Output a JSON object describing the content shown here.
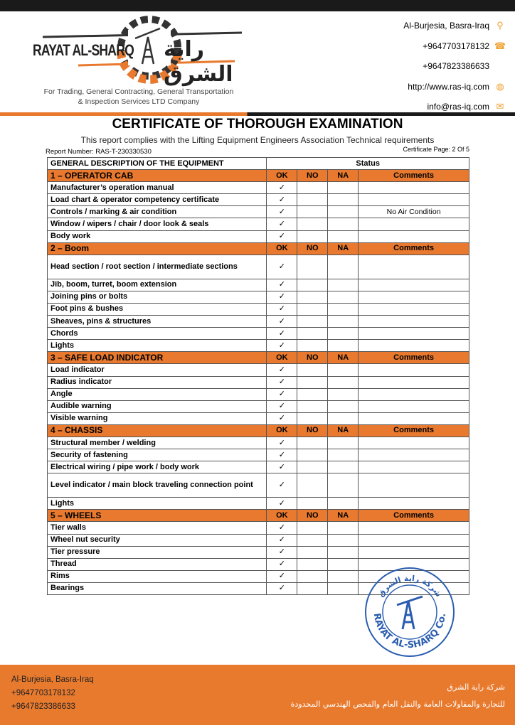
{
  "header": {
    "logo_name": "RAYAT AL-SHARQ",
    "logo_arabic": "راية الشرق",
    "tagline_1": "For Trading, General Contracting, General Transportation",
    "tagline_2": "& Inspection Services LTD Company",
    "contacts": [
      {
        "text": "Al-Burjesia, Basra-Iraq",
        "icon": "location-pin-icon"
      },
      {
        "text": "+9647703178132",
        "icon": "telephone-icon"
      },
      {
        "text": "+9647823386633",
        "icon": ""
      },
      {
        "text": "http://www.ras-iq.com",
        "icon": "globe-icon"
      },
      {
        "text": "info@ras-iq.com",
        "icon": "envelope-icon"
      }
    ]
  },
  "title": "CERTIFICATE OF THOROUGH EXAMINATION",
  "subtitle": "This report complies with the Lifting Equipment Engineers Association Technical requirements",
  "report_number": "Report Number: RAS-T-230330530",
  "certificate_page": "Certificate Page: 2 Of 5",
  "table": {
    "col_description": "GENERAL DESCRIPTION OF THE EQUIPMENT",
    "col_status": "Status",
    "check": "✓",
    "sections": [
      {
        "title": "1 – OPERATOR CAB",
        "ok": "OK",
        "no": "NO",
        "na": "NA",
        "comments": "Comments",
        "items": [
          {
            "label": "Manufacturer’s operation manual",
            "status": "OK",
            "comment": ""
          },
          {
            "label": "Load chart & operator competency certificate",
            "status": "OK",
            "comment": ""
          },
          {
            "label": "Controls / marking & air condition",
            "status": "OK",
            "comment": "No Air Condition"
          },
          {
            "label": "Window / wipers / chair / door look & seals",
            "status": "OK",
            "comment": ""
          },
          {
            "label": "Body work",
            "status": "OK",
            "comment": ""
          }
        ]
      },
      {
        "title": "2 – Boom",
        "ok": "OK",
        "no": "NO",
        "na": "NA",
        "comments": "Comments",
        "items": [
          {
            "label": "Head section / root section / intermediate sections",
            "status": "OK",
            "comment": ""
          },
          {
            "label": "Jib, boom, turret, boom extension",
            "status": "OK",
            "comment": ""
          },
          {
            "label": "Joining pins or bolts",
            "status": "OK",
            "comment": ""
          },
          {
            "label": "Foot pins & bushes",
            "status": "OK",
            "comment": ""
          },
          {
            "label": "Sheaves, pins & structures",
            "status": "OK",
            "comment": ""
          },
          {
            "label": "Chords",
            "status": "OK",
            "comment": ""
          },
          {
            "label": "Lights",
            "status": "OK",
            "comment": ""
          }
        ]
      },
      {
        "title": "3 – SAFE LOAD INDICATOR",
        "ok": "OK",
        "no": "NO",
        "na": "NA",
        "comments": "Comments",
        "items": [
          {
            "label": "Load indicator",
            "status": "OK",
            "comment": ""
          },
          {
            "label": "Radius indicator",
            "status": "OK",
            "comment": ""
          },
          {
            "label": "Angle",
            "status": "OK",
            "comment": ""
          },
          {
            "label": "Audible warning",
            "status": "OK",
            "comment": ""
          },
          {
            "label": "Visible warning",
            "status": "OK",
            "comment": ""
          }
        ]
      },
      {
        "title": "4 – CHASSIS",
        "ok": "OK",
        "no": "NO",
        "na": "NA",
        "comments": "Comments",
        "items": [
          {
            "label": "Structural member / welding",
            "status": "OK",
            "comment": ""
          },
          {
            "label": "Security of fastening",
            "status": "OK",
            "comment": ""
          },
          {
            "label": "Electrical wiring / pipe work / body work",
            "status": "OK",
            "comment": ""
          },
          {
            "label": "Level indicator / main block traveling connection point",
            "status": "OK",
            "comment": ""
          },
          {
            "label": "Lights",
            "status": "OK",
            "comment": ""
          }
        ]
      },
      {
        "title": "5 – WHEELS",
        "ok": "OK",
        "no": "NO",
        "na": "NA",
        "comments": "Comments",
        "items": [
          {
            "label": "Tier walls",
            "status": "OK",
            "comment": ""
          },
          {
            "label": "Wheel nut security",
            "status": "OK",
            "comment": ""
          },
          {
            "label": "Tier pressure",
            "status": "OK",
            "comment": ""
          },
          {
            "label": "Thread",
            "status": "OK",
            "comment": ""
          },
          {
            "label": "Rims",
            "status": "OK",
            "comment": ""
          },
          {
            "label": "Bearings",
            "status": "OK",
            "comment": ""
          }
        ]
      }
    ]
  },
  "stamp": {
    "text": "RAYAT AL-SHARQ Co.",
    "arabic": "شركة راية الشرق"
  },
  "footer": {
    "left": [
      "Al-Burjesia, Basra-Iraq",
      "+9647703178132",
      "+9647823386633"
    ],
    "right": [
      "شركة راية الشرق",
      "للتجارة والمقاولات العامة والنقل العام والفحص الهندسي المحدودة"
    ]
  },
  "colors": {
    "accent": "#e8792e",
    "dark": "#1a1a1a",
    "stamp": "#2a5db0"
  }
}
